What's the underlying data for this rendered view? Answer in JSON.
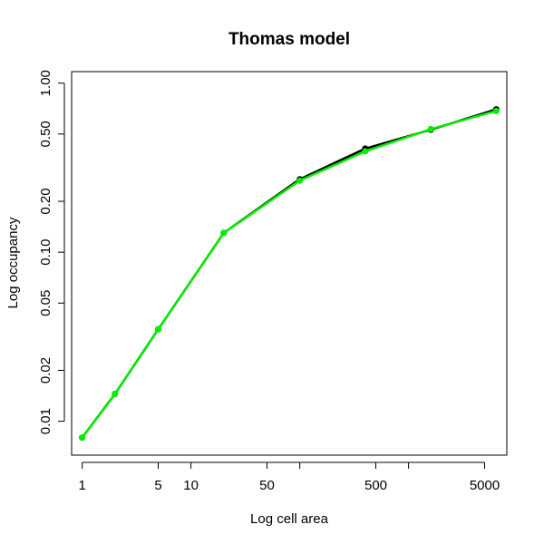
{
  "chart_data": {
    "type": "line",
    "title": "Thomas model",
    "xlabel": "Log cell area",
    "ylabel": "Log occupancy",
    "x_scale": "log",
    "y_scale": "log",
    "xlim": [
      0.8,
      8000
    ],
    "ylim": [
      0.0063,
      1.17
    ],
    "x_ticks": [
      1,
      5,
      10,
      50,
      100,
      500,
      1000,
      5000
    ],
    "x_tick_labels": [
      "1",
      "5",
      "10",
      "50",
      "",
      "500",
      "",
      "5000"
    ],
    "y_ticks": [
      0.01,
      0.02,
      0.05,
      0.1,
      0.2,
      0.5,
      1.0
    ],
    "y_tick_labels": [
      "0.01",
      "0.02",
      "0.05",
      "0.10",
      "0.20",
      "0.50",
      "1.00"
    ],
    "grid": false,
    "series": [
      {
        "color": "#000000",
        "x": [
          1,
          2,
          5,
          20,
          100,
          400,
          1600,
          6400
        ],
        "y": [
          0.008,
          0.0145,
          0.035,
          0.13,
          0.27,
          0.41,
          0.53,
          0.7
        ]
      },
      {
        "color": "#00ee00",
        "x": [
          1,
          2,
          5,
          20,
          100,
          400,
          1600,
          6400
        ],
        "y": [
          0.008,
          0.0145,
          0.035,
          0.13,
          0.265,
          0.395,
          0.535,
          0.685
        ]
      }
    ]
  }
}
